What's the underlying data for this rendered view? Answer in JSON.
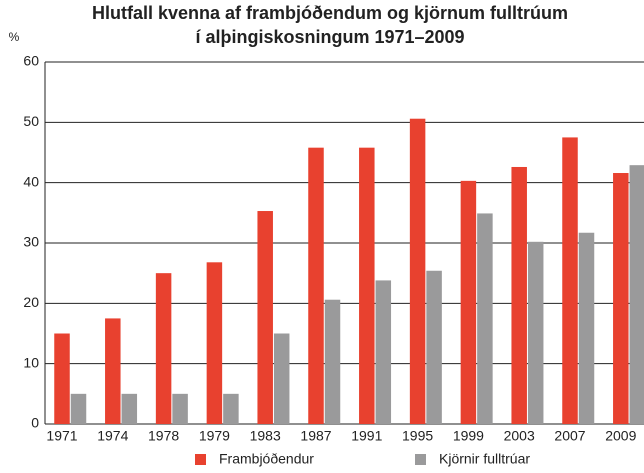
{
  "chart_data": {
    "type": "bar",
    "title": [
      "Hlutfall kvenna af frambjóðendum og kjörnum fulltrúum",
      "í alþingiskosningum 1971–2009"
    ],
    "y_label": "%",
    "categories": [
      "1971",
      "1974",
      "1978",
      "1979",
      "1983",
      "1987",
      "1991",
      "1995",
      "1999",
      "2003",
      "2007",
      "2009"
    ],
    "series": [
      {
        "name": "Frambjóðendur",
        "color": "#e8412f",
        "values": [
          15,
          17.5,
          25,
          26.8,
          35.3,
          45.8,
          45.8,
          50.6,
          40.3,
          42.6,
          47.5,
          41.6
        ]
      },
      {
        "name": "Kjörnir fulltrúar",
        "color": "#9a9a9b",
        "values": [
          5,
          5,
          5,
          5,
          15,
          20.6,
          23.8,
          25.4,
          34.9,
          30.2,
          31.7,
          42.9
        ]
      }
    ],
    "ylim": [
      0,
      60
    ],
    "yticks": [
      0,
      10,
      20,
      30,
      40,
      50,
      60
    ],
    "grid": true
  }
}
